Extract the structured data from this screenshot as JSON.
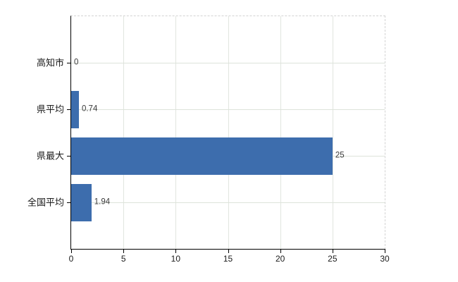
{
  "chart_data": {
    "type": "bar",
    "orientation": "horizontal",
    "title": "",
    "xlabel": "",
    "ylabel": "",
    "categories": [
      "高知市",
      "県平均",
      "県最大",
      "全国平均"
    ],
    "values": [
      0,
      0.74,
      25,
      1.94
    ],
    "value_labels": [
      "0",
      "0.74",
      "25",
      "1.94"
    ],
    "x_ticks": [
      0,
      5,
      10,
      15,
      20,
      25,
      30
    ],
    "x_tick_labels": [
      "0",
      "5",
      "10",
      "15",
      "20",
      "25",
      "30"
    ],
    "xlim": [
      0,
      30
    ],
    "grid": true,
    "legend": "none",
    "bar_color": "#3d6dad",
    "gridline_color": "#dde3da",
    "axis_color": "#000000"
  }
}
